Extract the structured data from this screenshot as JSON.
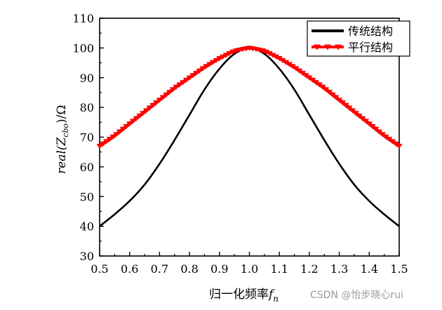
{
  "chart_data": {
    "type": "line",
    "xlabel": "归一化频率",
    "xlabel_var": "f",
    "xlabel_sub": "n",
    "ylabel_prefix": "real(Z",
    "ylabel_sub": "cbo",
    "ylabel_suffix": ")/Ω",
    "xlim": [
      0.5,
      1.5
    ],
    "ylim": [
      30,
      110
    ],
    "x_ticks": [
      "0.5",
      "0.6",
      "0.7",
      "0.8",
      "0.9",
      "1.0",
      "1.1",
      "1.2",
      "1.3",
      "1.4",
      "1.5"
    ],
    "y_ticks": [
      "30",
      "40",
      "50",
      "60",
      "70",
      "80",
      "90",
      "100",
      "110"
    ],
    "grid": false,
    "legend_position": "top-right",
    "series": [
      {
        "name": "传统结构",
        "color": "#000000",
        "marker": "none",
        "x": [
          0.5,
          0.55,
          0.6,
          0.65,
          0.7,
          0.75,
          0.8,
          0.85,
          0.9,
          0.95,
          1.0,
          1.05,
          1.1,
          1.15,
          1.2,
          1.25,
          1.3,
          1.35,
          1.4,
          1.45,
          1.5
        ],
        "y": [
          40,
          44,
          48.5,
          54,
          61,
          69,
          77.5,
          86,
          93,
          98,
          100,
          98,
          93,
          86,
          77.5,
          69,
          61,
          54,
          48.5,
          44,
          40
        ]
      },
      {
        "name": "平行结构",
        "color": "#ff0000",
        "marker": "triangle-down",
        "x": [
          0.5,
          0.55,
          0.6,
          0.65,
          0.7,
          0.75,
          0.8,
          0.85,
          0.9,
          0.95,
          1.0,
          1.05,
          1.1,
          1.15,
          1.2,
          1.25,
          1.3,
          1.35,
          1.4,
          1.45,
          1.5
        ],
        "y": [
          67,
          70.5,
          74.5,
          78.5,
          82.5,
          86.5,
          90,
          93.5,
          96.5,
          99,
          100,
          99,
          96.5,
          93.5,
          90,
          86.5,
          82.5,
          78.5,
          74.5,
          70.5,
          67
        ]
      }
    ]
  },
  "watermark": "CSDN @怡步晓心rui"
}
